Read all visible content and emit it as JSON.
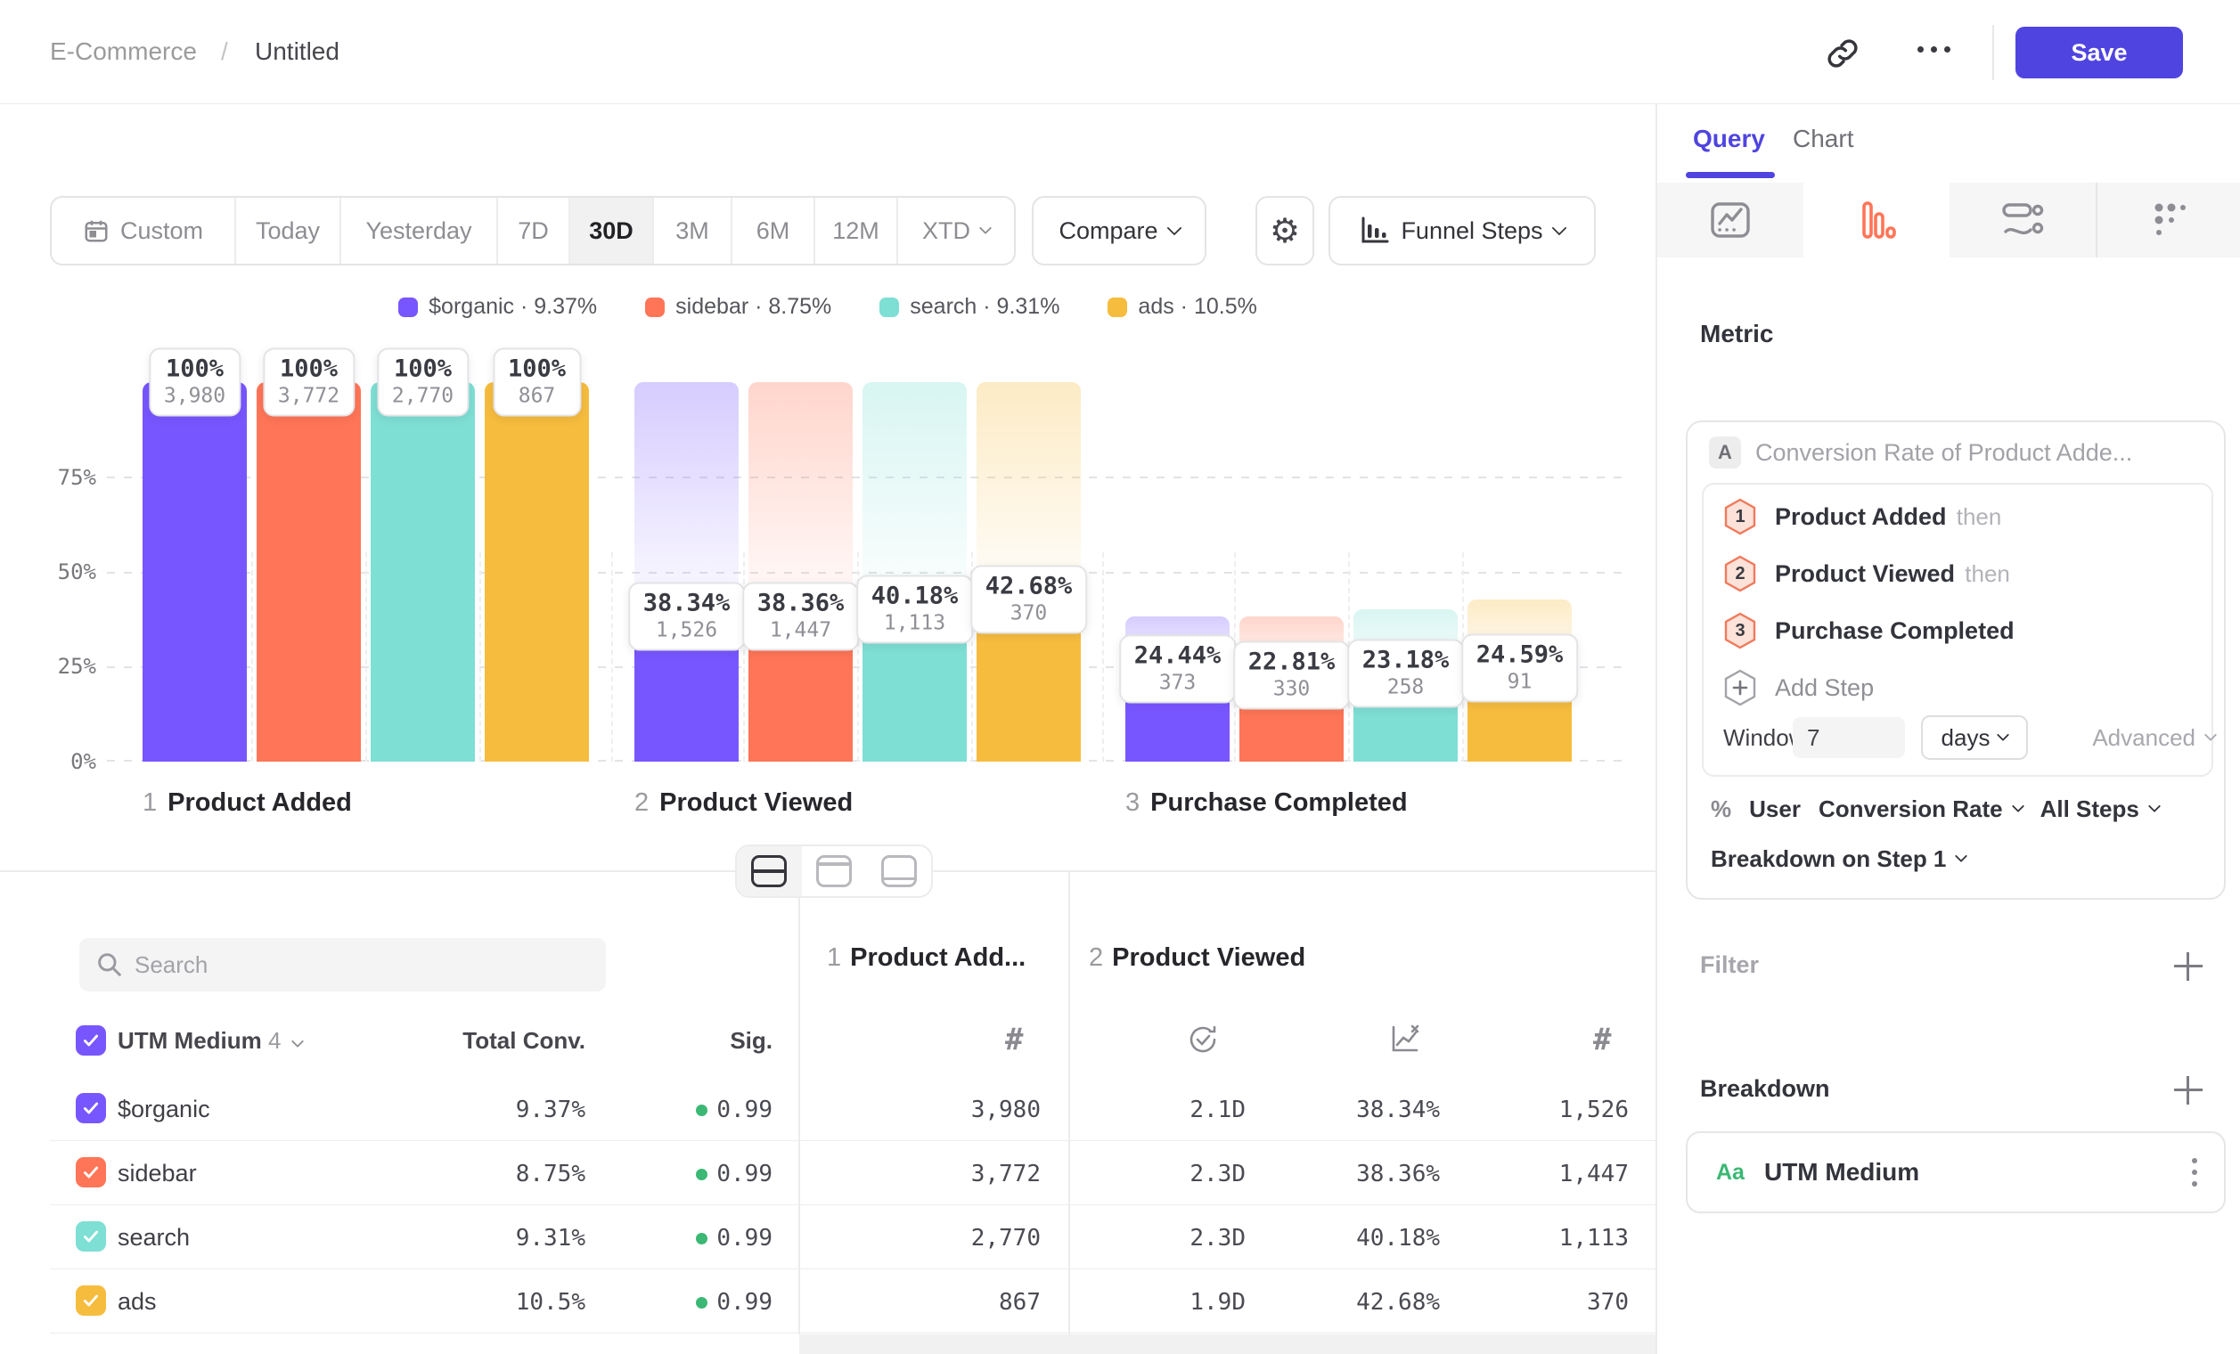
{
  "colors": {
    "accent": "#4F44E0",
    "funnel_orange": "#FF7557",
    "green": "#3BB873"
  },
  "header": {
    "breadcrumb": [
      "E-Commerce",
      "Untitled"
    ],
    "separator": "/",
    "save": "Save"
  },
  "toolbar": {
    "date_ranges": [
      "Custom",
      "Today",
      "Yesterday",
      "7D",
      "30D",
      "3M",
      "6M",
      "12M",
      "XTD"
    ],
    "active_range": "30D",
    "compare": "Compare",
    "chart_type": "Funnel Steps"
  },
  "legend": [
    {
      "label": "$organic",
      "value": "9.37%",
      "color": "#7856FF"
    },
    {
      "label": "sidebar",
      "value": "8.75%",
      "color": "#FF7557"
    },
    {
      "label": "search",
      "value": "9.31%",
      "color": "#7EDFD4"
    },
    {
      "label": "ads",
      "value": "10.5%",
      "color": "#F6BC3E"
    }
  ],
  "chart_data": {
    "type": "funnel",
    "steps": [
      {
        "num": "1",
        "label": "Product Added"
      },
      {
        "num": "2",
        "label": "Product Viewed"
      },
      {
        "num": "3",
        "label": "Purchase Completed"
      }
    ],
    "y_ticks": [
      "75%",
      "50%",
      "25%",
      "0%"
    ],
    "ylim": [
      0,
      100
    ],
    "series": [
      {
        "name": "$organic",
        "color": "#7856FF",
        "pcts": [
          100,
          38.34,
          24.44
        ],
        "pct_labels": [
          "100%",
          "38.34%",
          "24.44%"
        ],
        "counts": [
          3980,
          1526,
          373
        ],
        "count_labels": [
          "3,980",
          "1,526",
          "373"
        ],
        "overall_conversion": "9.37%"
      },
      {
        "name": "sidebar",
        "color": "#FF7557",
        "pcts": [
          100,
          38.36,
          22.81
        ],
        "pct_labels": [
          "100%",
          "38.36%",
          "22.81%"
        ],
        "counts": [
          3772,
          1447,
          330
        ],
        "count_labels": [
          "3,772",
          "1,447",
          "330"
        ],
        "overall_conversion": "8.75%"
      },
      {
        "name": "search",
        "color": "#7EDFD4",
        "pcts": [
          100,
          40.18,
          23.18
        ],
        "pct_labels": [
          "100%",
          "40.18%",
          "23.18%"
        ],
        "counts": [
          2770,
          1113,
          258
        ],
        "count_labels": [
          "2,770",
          "1,113",
          "258"
        ],
        "overall_conversion": "9.31%"
      },
      {
        "name": "ads",
        "color": "#F6BC3E",
        "pcts": [
          100,
          42.68,
          24.59
        ],
        "pct_labels": [
          "100%",
          "42.68%",
          "24.59%"
        ],
        "counts": [
          867,
          370,
          91
        ],
        "count_labels": [
          "867",
          "370",
          "91"
        ],
        "overall_conversion": "10.5%"
      }
    ]
  },
  "table": {
    "search_placeholder": "Search",
    "group_header_1": {
      "num": "1",
      "label": "Product Add..."
    },
    "group_header_2": {
      "num": "2",
      "label": "Product Viewed"
    },
    "breakdown_col": {
      "label": "UTM Medium",
      "count": "4"
    },
    "cols": [
      "Total Conv.",
      "Sig."
    ],
    "rows": [
      {
        "name": "$organic",
        "color": "#7856FF",
        "total_conv": "9.37%",
        "sig": "0.99",
        "step1_count": "3,980",
        "avg_time": "2.1D",
        "step2_conv": "38.34%",
        "step2_count": "1,526"
      },
      {
        "name": "sidebar",
        "color": "#FF7557",
        "total_conv": "8.75%",
        "sig": "0.99",
        "step1_count": "3,772",
        "avg_time": "2.3D",
        "step2_conv": "38.36%",
        "step2_count": "1,447"
      },
      {
        "name": "search",
        "color": "#7EDFD4",
        "total_conv": "9.31%",
        "sig": "0.99",
        "step1_count": "2,770",
        "avg_time": "2.3D",
        "step2_conv": "40.18%",
        "step2_count": "1,113"
      },
      {
        "name": "ads",
        "color": "#F6BC3E",
        "total_conv": "10.5%",
        "sig": "0.99",
        "step1_count": "867",
        "avg_time": "1.9D",
        "step2_conv": "42.68%",
        "step2_count": "370"
      }
    ]
  },
  "query_panel": {
    "tabs": [
      "Query",
      "Chart"
    ],
    "active_tab": "Query",
    "metric_heading": "Metric",
    "metric": {
      "badge": "A",
      "title": "Conversion Rate of Product Adde..."
    },
    "steps": [
      {
        "num": "1",
        "label": "Product Added",
        "suffix": "then"
      },
      {
        "num": "2",
        "label": "Product Viewed",
        "suffix": "then"
      },
      {
        "num": "3",
        "label": "Purchase Completed",
        "suffix": ""
      }
    ],
    "add_step": "Add Step",
    "window": {
      "label": "Window",
      "value": "7",
      "unit": "days",
      "advanced": "Advanced"
    },
    "measurement": {
      "pct": "%",
      "entity": "User",
      "metric": "Conversion Rate",
      "scope": "All Steps"
    },
    "breakdown_on": "Breakdown on Step 1",
    "filter": {
      "label": "Filter"
    },
    "breakdown": {
      "label": "Breakdown",
      "item": {
        "type": "Aa",
        "label": "UTM Medium"
      }
    }
  }
}
